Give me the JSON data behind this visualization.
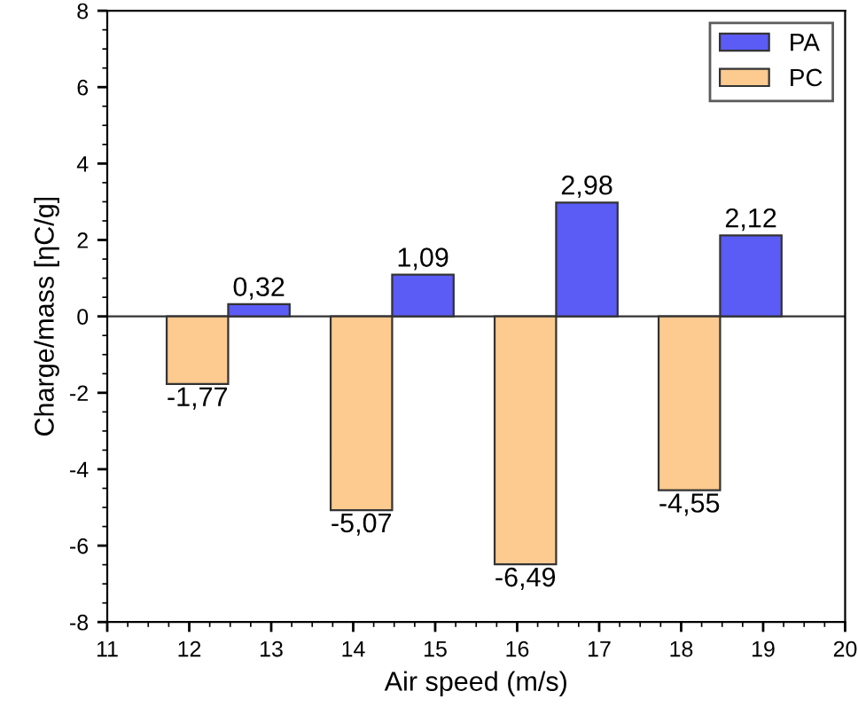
{
  "chart_data": {
    "type": "bar",
    "xlabel": "Air speed (m/s)",
    "ylabel": "Charge/mass [ηC/g]",
    "xlim": [
      11,
      20
    ],
    "xticks": [
      11,
      12,
      13,
      14,
      15,
      16,
      17,
      18,
      19,
      20
    ],
    "ylim": [
      -8,
      8
    ],
    "yticks": [
      -8,
      -6,
      -4,
      -2,
      0,
      2,
      4,
      6,
      8
    ],
    "legend": "top right",
    "series": [
      {
        "name": "PA",
        "color": "#5b5bf5",
        "x": [
          12.85,
          14.85,
          16.85,
          18.85
        ],
        "values": [
          0.32,
          1.09,
          2.98,
          2.12
        ],
        "value_labels": [
          "0,32",
          "1,09",
          "2,98",
          "2,12"
        ]
      },
      {
        "name": "PC",
        "color": "#fdca8f",
        "x": [
          12.1,
          14.1,
          16.1,
          18.1
        ],
        "values": [
          -1.77,
          -5.07,
          -6.49,
          -4.55
        ],
        "value_labels": [
          "-1,77",
          "-5,07",
          "-6,49",
          "-4,55"
        ]
      }
    ]
  }
}
